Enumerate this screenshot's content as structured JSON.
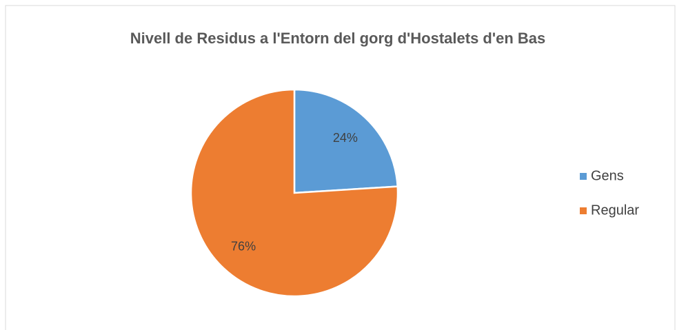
{
  "chart_data": {
    "type": "pie",
    "title": "Nivell de Residus a l'Entorn del gorg d'Hostalets d'en Bas",
    "categories": [
      "Gens",
      "Regular"
    ],
    "values": [
      24,
      76
    ],
    "value_labels": [
      "24%",
      "76%"
    ],
    "colors": [
      "#5b9bd5",
      "#ed7d31"
    ],
    "legend": "right"
  }
}
